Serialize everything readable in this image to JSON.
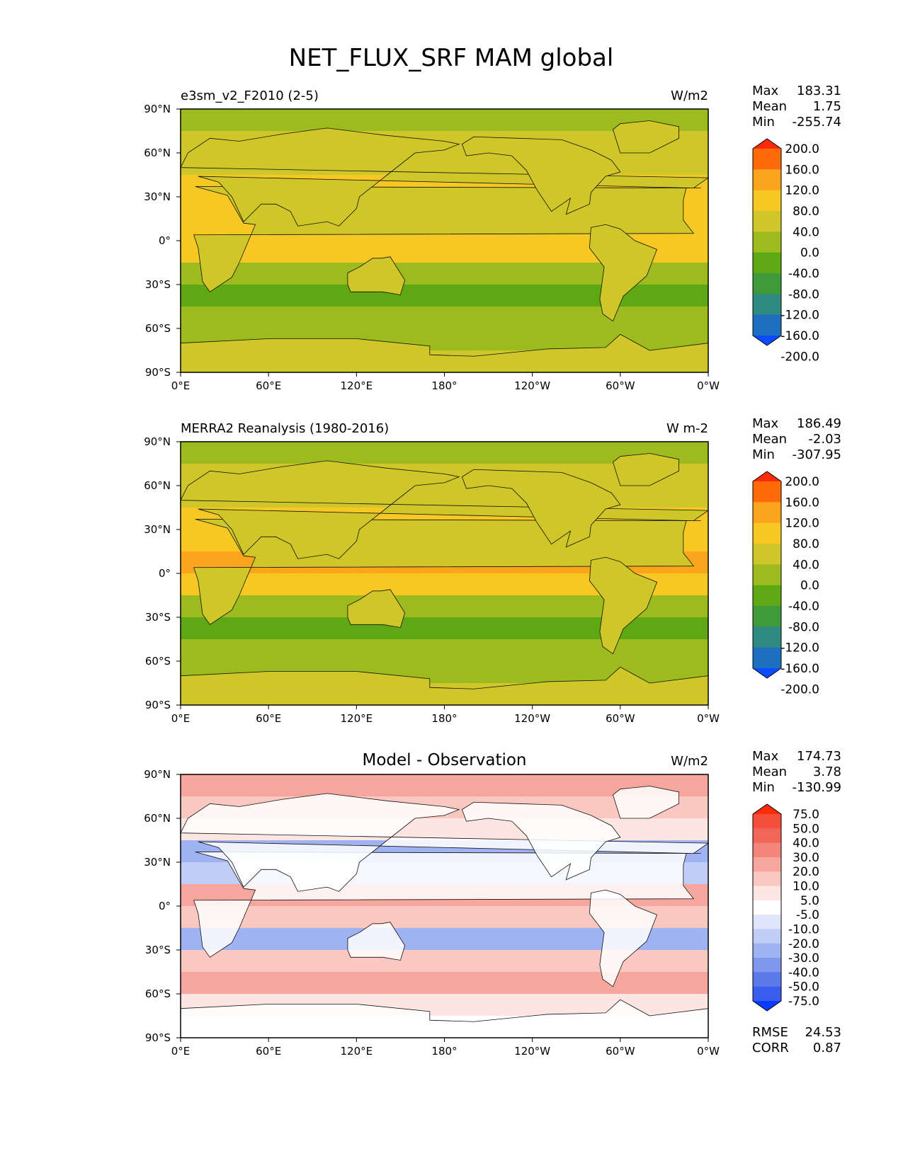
{
  "figure": {
    "title": "NET_FLUX_SRF MAM global"
  },
  "chart_data": [
    {
      "type": "heatmap",
      "title": "e3sm_v2_F2010 (2-5)",
      "units": "W/m2",
      "stats": [
        {
          "label": "Max",
          "value": "183.31"
        },
        {
          "label": "Mean",
          "value": "1.75"
        },
        {
          "label": "Min",
          "value": "-255.74"
        }
      ],
      "xticks": [
        "0°E",
        "60°E",
        "120°E",
        "180°",
        "120°W",
        "60°W",
        "0°W"
      ],
      "yticks": [
        "90°N",
        "60°N",
        "30°N",
        "0°",
        "30°S",
        "60°S",
        "90°S"
      ],
      "colorbar": {
        "levels": [
          "200.0",
          "160.0",
          "120.0",
          "80.0",
          "40.0",
          "0.0",
          "-40.0",
          "-80.0",
          "-120.0",
          "-160.0",
          "-200.0"
        ],
        "colors": [
          "#ff2a0a",
          "#ff6a0a",
          "#fca51c",
          "#f7c824",
          "#cfc62a",
          "#9dbb1f",
          "#5ea913",
          "#3f9a3a",
          "#2f8a82",
          "#1f6fc0",
          "#0a4cff"
        ]
      },
      "bands": [
        {
          "lat": [
            90,
            75
          ],
          "value": -20
        },
        {
          "lat": [
            75,
            60
          ],
          "value": 0
        },
        {
          "lat": [
            60,
            45
          ],
          "value": 20
        },
        {
          "lat": [
            45,
            30
          ],
          "value": 50
        },
        {
          "lat": [
            30,
            15
          ],
          "value": 40
        },
        {
          "lat": [
            15,
            0
          ],
          "value": 70
        },
        {
          "lat": [
            0,
            -15
          ],
          "value": 45
        },
        {
          "lat": [
            -15,
            -30
          ],
          "value": -20
        },
        {
          "lat": [
            -30,
            -45
          ],
          "value": -60
        },
        {
          "lat": [
            -45,
            -60
          ],
          "value": -40
        },
        {
          "lat": [
            -60,
            -75
          ],
          "value": -15
        },
        {
          "lat": [
            -75,
            -90
          ],
          "value": 0
        }
      ]
    },
    {
      "type": "heatmap",
      "title": "MERRA2 Reanalysis (1980-2016)",
      "units": "W m-2",
      "stats": [
        {
          "label": "Max",
          "value": "186.49"
        },
        {
          "label": "Mean",
          "value": "-2.03"
        },
        {
          "label": "Min",
          "value": "-307.95"
        }
      ],
      "xticks": [
        "0°E",
        "60°E",
        "120°E",
        "180°",
        "120°W",
        "60°W",
        "0°W"
      ],
      "yticks": [
        "90°N",
        "60°N",
        "30°N",
        "0°",
        "30°S",
        "60°S",
        "90°S"
      ],
      "colorbar": {
        "levels": [
          "200.0",
          "160.0",
          "120.0",
          "80.0",
          "40.0",
          "0.0",
          "-40.0",
          "-80.0",
          "-120.0",
          "-160.0",
          "-200.0"
        ],
        "colors": [
          "#ff2a0a",
          "#ff6a0a",
          "#fca51c",
          "#f7c824",
          "#cfc62a",
          "#9dbb1f",
          "#5ea913",
          "#3f9a3a",
          "#2f8a82",
          "#1f6fc0",
          "#0a4cff"
        ]
      },
      "bands": [
        {
          "lat": [
            90,
            75
          ],
          "value": -20
        },
        {
          "lat": [
            75,
            60
          ],
          "value": 0
        },
        {
          "lat": [
            60,
            45
          ],
          "value": 20
        },
        {
          "lat": [
            45,
            30
          ],
          "value": 40
        },
        {
          "lat": [
            30,
            15
          ],
          "value": 50
        },
        {
          "lat": [
            15,
            0
          ],
          "value": 80
        },
        {
          "lat": [
            0,
            -15
          ],
          "value": 40
        },
        {
          "lat": [
            -15,
            -30
          ],
          "value": -20
        },
        {
          "lat": [
            -30,
            -45
          ],
          "value": -50
        },
        {
          "lat": [
            -45,
            -60
          ],
          "value": -40
        },
        {
          "lat": [
            -60,
            -75
          ],
          "value": -20
        },
        {
          "lat": [
            -75,
            -90
          ],
          "value": 0
        }
      ]
    },
    {
      "type": "heatmap",
      "title": "Model - Observation",
      "units": "W/m2",
      "stats": [
        {
          "label": "Max",
          "value": "174.73"
        },
        {
          "label": "Mean",
          "value": "3.78"
        },
        {
          "label": "Min",
          "value": "-130.99"
        }
      ],
      "extra_stats": [
        {
          "label": "RMSE",
          "value": "24.53"
        },
        {
          "label": "CORR",
          "value": "0.87"
        }
      ],
      "xticks": [
        "0°E",
        "60°E",
        "120°E",
        "180°",
        "120°W",
        "60°W",
        "0°W"
      ],
      "yticks": [
        "90°N",
        "60°N",
        "30°N",
        "0°",
        "30°S",
        "60°S",
        "90°S"
      ],
      "colorbar": {
        "levels": [
          "75.0",
          "50.0",
          "40.0",
          "30.0",
          "20.0",
          "10.0",
          "5.0",
          "-5.0",
          "-10.0",
          "-20.0",
          "-30.0",
          "-40.0",
          "-50.0",
          "-75.0"
        ],
        "colors": [
          "#ff2a0a",
          "#f34f3a",
          "#f2665a",
          "#f4857a",
          "#f7a69d",
          "#fac8c1",
          "#fde5e1",
          "#ffffff",
          "#dfe5fb",
          "#c0cdf6",
          "#9fb2f2",
          "#7f97ee",
          "#5a7aeb",
          "#3a5cef",
          "#0a3cff"
        ]
      },
      "bands": [
        {
          "lat": [
            90,
            75
          ],
          "value": 25
        },
        {
          "lat": [
            75,
            60
          ],
          "value": 15
        },
        {
          "lat": [
            60,
            45
          ],
          "value": 8
        },
        {
          "lat": [
            45,
            30
          ],
          "value": -25
        },
        {
          "lat": [
            30,
            15
          ],
          "value": -15
        },
        {
          "lat": [
            15,
            0
          ],
          "value": 25
        },
        {
          "lat": [
            0,
            -15
          ],
          "value": 15
        },
        {
          "lat": [
            -15,
            -30
          ],
          "value": -25
        },
        {
          "lat": [
            -30,
            -45
          ],
          "value": 12
        },
        {
          "lat": [
            -45,
            -60
          ],
          "value": 25
        },
        {
          "lat": [
            -60,
            -75
          ],
          "value": 8
        },
        {
          "lat": [
            -75,
            -90
          ],
          "value": 0
        }
      ]
    }
  ]
}
